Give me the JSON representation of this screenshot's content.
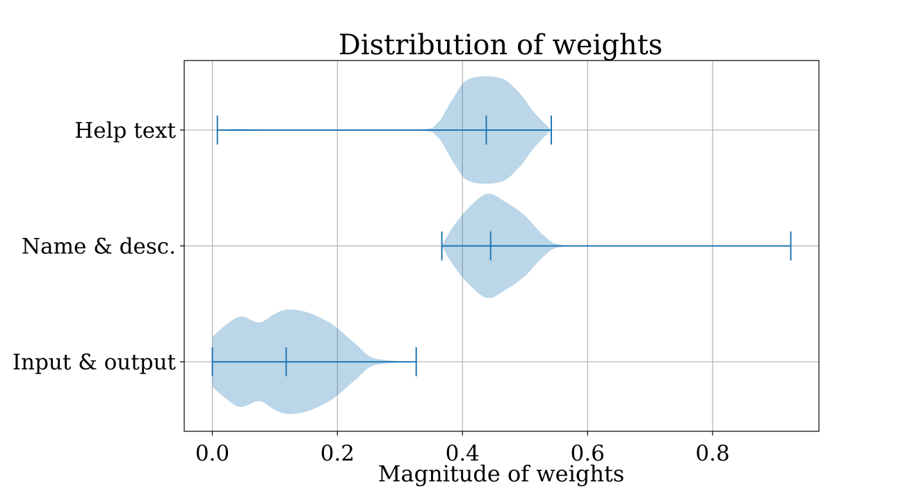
{
  "chart_data": {
    "type": "violin",
    "orientation": "horizontal",
    "title": "Distribution of weights",
    "xlabel": "Magnitude of weights",
    "ylabel": "",
    "xlim": [
      -0.045,
      0.97
    ],
    "xticks": [
      0.0,
      0.2,
      0.4,
      0.6,
      0.8
    ],
    "xtick_labels": [
      "0.0",
      "0.2",
      "0.4",
      "0.6",
      "0.8"
    ],
    "grid": true,
    "colors": {
      "fill": "#1f77b4",
      "fill_opacity": 0.3,
      "line": "#1f77b4"
    },
    "categories": [
      "Input & output",
      "Name & desc.",
      "Help text"
    ],
    "series": [
      {
        "category": "Input & output",
        "min": 0.0,
        "median": 0.118,
        "max": 0.326,
        "density_profile": [
          [
            0.0,
            0.43
          ],
          [
            0.02,
            0.62
          ],
          [
            0.045,
            0.78
          ],
          [
            0.075,
            0.68
          ],
          [
            0.1,
            0.83
          ],
          [
            0.12,
            0.9
          ],
          [
            0.15,
            0.86
          ],
          [
            0.18,
            0.72
          ],
          [
            0.2,
            0.58
          ],
          [
            0.23,
            0.3
          ],
          [
            0.26,
            0.06
          ],
          [
            0.326,
            0.0
          ]
        ]
      },
      {
        "category": "Name & desc.",
        "min": 0.367,
        "median": 0.445,
        "max": 0.925,
        "density_profile": [
          [
            0.367,
            0.0
          ],
          [
            0.385,
            0.33
          ],
          [
            0.41,
            0.66
          ],
          [
            0.44,
            0.9
          ],
          [
            0.47,
            0.75
          ],
          [
            0.5,
            0.52
          ],
          [
            0.53,
            0.18
          ],
          [
            0.56,
            0.015
          ],
          [
            0.65,
            0.01
          ],
          [
            0.8,
            0.003
          ],
          [
            0.925,
            0.0
          ]
        ]
      },
      {
        "category": "Help text",
        "min": 0.008,
        "median": 0.438,
        "max": 0.542,
        "density_profile": [
          [
            0.008,
            0.0
          ],
          [
            0.04,
            0.02
          ],
          [
            0.1,
            0.005
          ],
          [
            0.2,
            0.003
          ],
          [
            0.33,
            0.01
          ],
          [
            0.36,
            0.12
          ],
          [
            0.385,
            0.55
          ],
          [
            0.41,
            0.88
          ],
          [
            0.46,
            0.9
          ],
          [
            0.49,
            0.65
          ],
          [
            0.515,
            0.3
          ],
          [
            0.542,
            0.0
          ]
        ]
      }
    ]
  }
}
